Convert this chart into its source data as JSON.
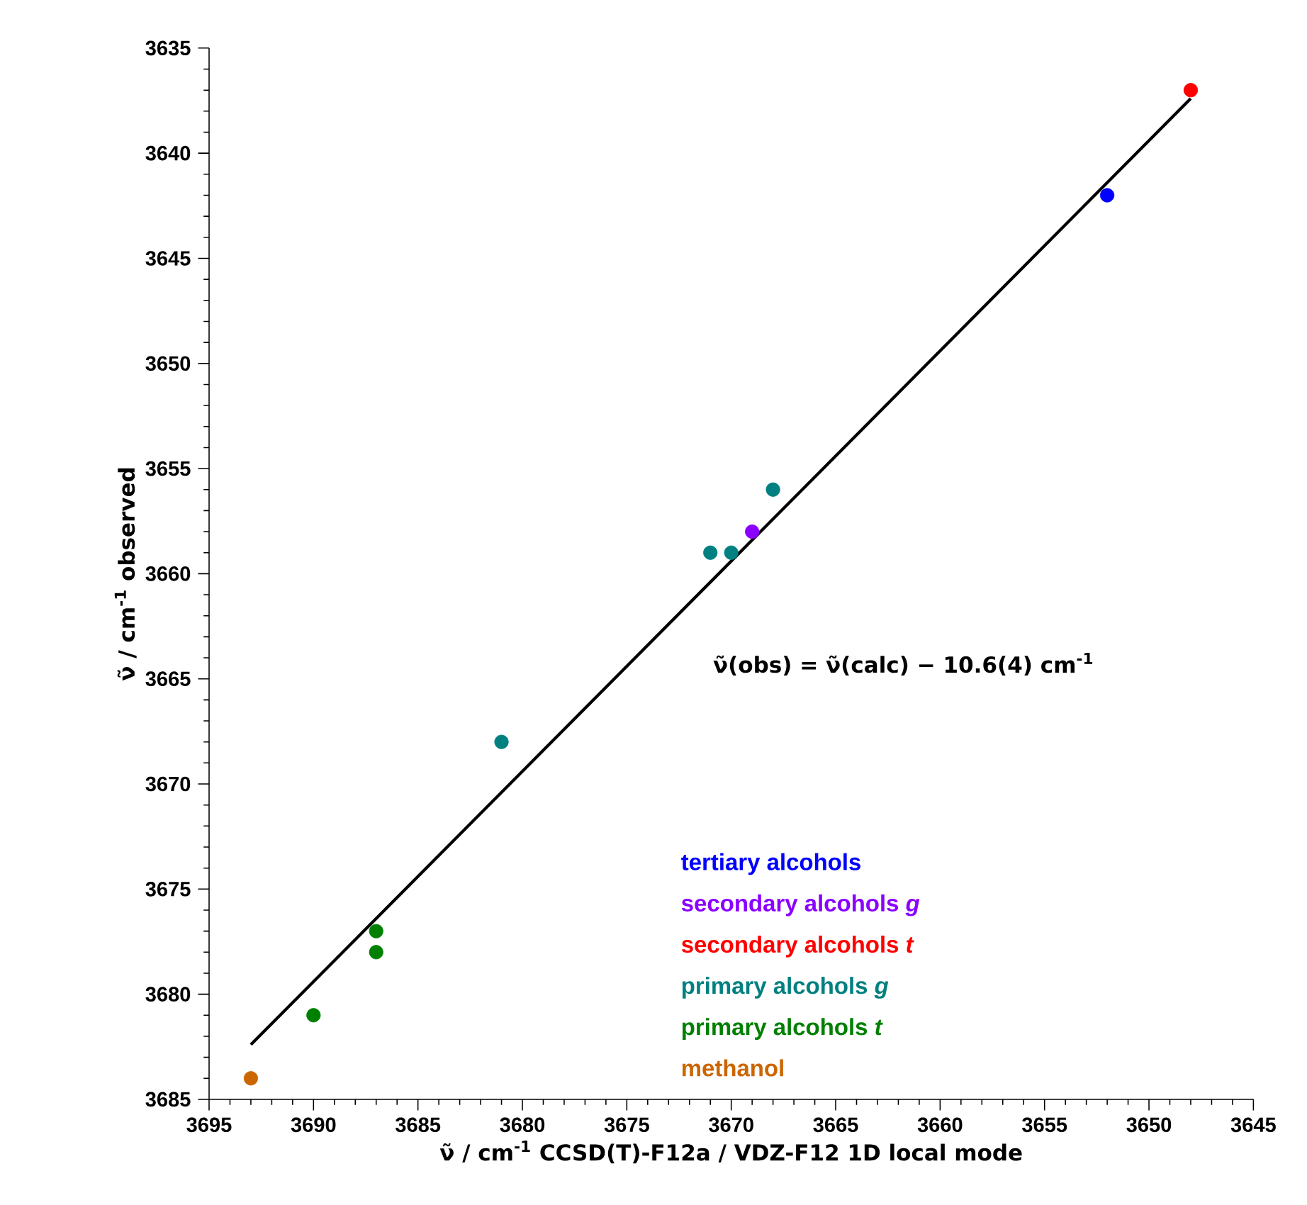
{
  "chart_data": {
    "type": "scatter",
    "xlabel": "ν̃ / cm$^{-1}$   CCSD(T)-F12a / VDZ-F12 1D local mode",
    "ylabel": "ν̃ / cm$^{-1}$ observed",
    "xlim": [
      3695,
      3645
    ],
    "xticks": [
      3695,
      3690,
      3685,
      3680,
      3675,
      3670,
      3665,
      3660,
      3655,
      3650,
      3645
    ],
    "ylim": [
      3685,
      3635
    ],
    "yticks": [
      3685,
      3680,
      3675,
      3670,
      3665,
      3660,
      3655,
      3650,
      3645,
      3640,
      3635
    ],
    "legend": "bottom right",
    "annotations": [
      "ν̃(obs) = ν̃(calc)  − 10.6(4) cm$^{-1}$"
    ],
    "series": [
      {
        "name": "tertiary alcohols",
        "color": "#0000ff",
        "x": [
          3652
        ],
        "values": [
          3642
        ]
      },
      {
        "name": "secondary alcohols *g*",
        "color": "#8b00ff",
        "x": [
          3669
        ],
        "values": [
          3658
        ]
      },
      {
        "name": "secondary alcohols *t*",
        "color": "#ff0000",
        "x": [
          3648
        ],
        "values": [
          3637
        ]
      },
      {
        "name": "primary alcohols *g*",
        "color": "#008080",
        "x": [
          3668,
          3671,
          3670,
          3681
        ],
        "values": [
          3656,
          3659,
          3659,
          3668
        ]
      },
      {
        "name": "primary alcohols *t*",
        "color": "#008000",
        "x": [
          3687,
          3687,
          3690
        ],
        "values": [
          3677,
          3678,
          3681
        ]
      },
      {
        "name": "methanol",
        "color": "#cc6600",
        "x": [
          3693
        ],
        "values": [
          3684
        ]
      },
      {
        "type": "line",
        "color": "#000000",
        "x": [
          3693,
          3648
        ],
        "values": [
          3682.4,
          3637.4
        ]
      }
    ]
  }
}
